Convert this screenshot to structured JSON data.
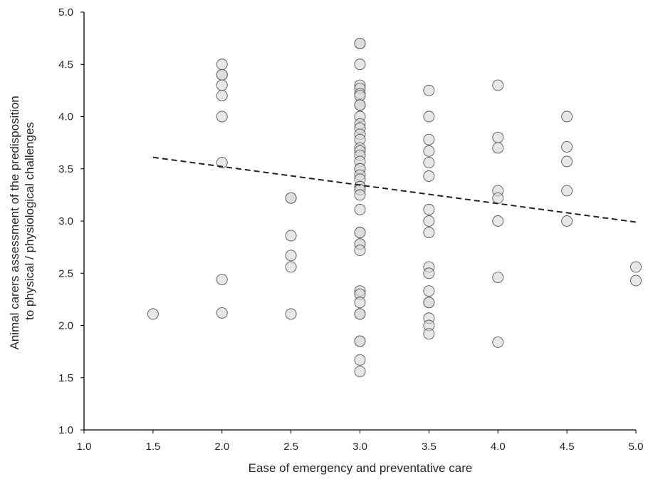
{
  "chart_data": {
    "type": "scatter",
    "title": "",
    "xlabel": "Ease of emergency and preventative care",
    "ylabel_lines": [
      "Animal carers assessment of the predisposition",
      "to physical / physiological challenges"
    ],
    "xlim": [
      1.0,
      5.0
    ],
    "ylim": [
      1.0,
      5.0
    ],
    "xticks": [
      "1.0",
      "1.5",
      "2.0",
      "2.5",
      "3.0",
      "3.5",
      "4.0",
      "4.5",
      "5.0"
    ],
    "yticks": [
      "1.0",
      "1.5",
      "2.0",
      "2.5",
      "3.0",
      "3.5",
      "4.0",
      "4.5",
      "5.0"
    ],
    "grid": false,
    "legend": "none",
    "marker_color": "#d9d9d9",
    "marker_edge": "#555555",
    "trendline": {
      "style": "dashed",
      "color": "#222222",
      "x": [
        1.5,
        5.0
      ],
      "y": [
        3.61,
        2.99
      ]
    },
    "points": [
      {
        "x": 1.5,
        "y": 2.11
      },
      {
        "x": 2.0,
        "y": 4.5
      },
      {
        "x": 2.0,
        "y": 4.4
      },
      {
        "x": 2.0,
        "y": 4.4
      },
      {
        "x": 2.0,
        "y": 4.3
      },
      {
        "x": 2.0,
        "y": 4.2
      },
      {
        "x": 2.0,
        "y": 4.0
      },
      {
        "x": 2.0,
        "y": 3.56
      },
      {
        "x": 2.0,
        "y": 2.44
      },
      {
        "x": 2.0,
        "y": 2.12
      },
      {
        "x": 2.5,
        "y": 3.22
      },
      {
        "x": 2.5,
        "y": 3.22
      },
      {
        "x": 2.5,
        "y": 2.86
      },
      {
        "x": 2.5,
        "y": 2.67
      },
      {
        "x": 2.5,
        "y": 2.56
      },
      {
        "x": 2.5,
        "y": 2.11
      },
      {
        "x": 3.0,
        "y": 4.7
      },
      {
        "x": 3.0,
        "y": 4.7
      },
      {
        "x": 3.0,
        "y": 4.5
      },
      {
        "x": 3.0,
        "y": 4.3
      },
      {
        "x": 3.0,
        "y": 4.27
      },
      {
        "x": 3.0,
        "y": 4.22
      },
      {
        "x": 3.0,
        "y": 4.2
      },
      {
        "x": 3.0,
        "y": 4.11
      },
      {
        "x": 3.0,
        "y": 4.11
      },
      {
        "x": 3.0,
        "y": 4.11
      },
      {
        "x": 3.0,
        "y": 4.0
      },
      {
        "x": 3.0,
        "y": 3.93
      },
      {
        "x": 3.0,
        "y": 3.89
      },
      {
        "x": 3.0,
        "y": 3.83
      },
      {
        "x": 3.0,
        "y": 3.78
      },
      {
        "x": 3.0,
        "y": 3.7
      },
      {
        "x": 3.0,
        "y": 3.67
      },
      {
        "x": 3.0,
        "y": 3.63
      },
      {
        "x": 3.0,
        "y": 3.57
      },
      {
        "x": 3.0,
        "y": 3.5
      },
      {
        "x": 3.0,
        "y": 3.5
      },
      {
        "x": 3.0,
        "y": 3.44
      },
      {
        "x": 3.0,
        "y": 3.4
      },
      {
        "x": 3.0,
        "y": 3.33
      },
      {
        "x": 3.0,
        "y": 3.33
      },
      {
        "x": 3.0,
        "y": 3.3
      },
      {
        "x": 3.0,
        "y": 3.25
      },
      {
        "x": 3.0,
        "y": 3.11
      },
      {
        "x": 3.0,
        "y": 2.89
      },
      {
        "x": 3.0,
        "y": 2.89
      },
      {
        "x": 3.0,
        "y": 2.78
      },
      {
        "x": 3.0,
        "y": 2.78
      },
      {
        "x": 3.0,
        "y": 2.72
      },
      {
        "x": 3.0,
        "y": 2.33
      },
      {
        "x": 3.0,
        "y": 2.3
      },
      {
        "x": 3.0,
        "y": 2.22
      },
      {
        "x": 3.0,
        "y": 2.11
      },
      {
        "x": 3.0,
        "y": 2.11
      },
      {
        "x": 3.0,
        "y": 1.85
      },
      {
        "x": 3.0,
        "y": 1.85
      },
      {
        "x": 3.0,
        "y": 1.67
      },
      {
        "x": 3.0,
        "y": 1.56
      },
      {
        "x": 3.5,
        "y": 4.25
      },
      {
        "x": 3.5,
        "y": 4.0
      },
      {
        "x": 3.5,
        "y": 3.78
      },
      {
        "x": 3.5,
        "y": 3.67
      },
      {
        "x": 3.5,
        "y": 3.56
      },
      {
        "x": 3.5,
        "y": 3.43
      },
      {
        "x": 3.5,
        "y": 3.11
      },
      {
        "x": 3.5,
        "y": 3.0
      },
      {
        "x": 3.5,
        "y": 2.89
      },
      {
        "x": 3.5,
        "y": 2.56
      },
      {
        "x": 3.5,
        "y": 2.5
      },
      {
        "x": 3.5,
        "y": 2.33
      },
      {
        "x": 3.5,
        "y": 2.22
      },
      {
        "x": 3.5,
        "y": 2.22
      },
      {
        "x": 3.5,
        "y": 2.07
      },
      {
        "x": 3.5,
        "y": 2.0
      },
      {
        "x": 3.5,
        "y": 1.92
      },
      {
        "x": 4.0,
        "y": 4.3
      },
      {
        "x": 4.0,
        "y": 3.8
      },
      {
        "x": 4.0,
        "y": 3.7
      },
      {
        "x": 4.0,
        "y": 3.29
      },
      {
        "x": 4.0,
        "y": 3.22
      },
      {
        "x": 4.0,
        "y": 3.0
      },
      {
        "x": 4.0,
        "y": 2.46
      },
      {
        "x": 4.0,
        "y": 1.84
      },
      {
        "x": 4.5,
        "y": 4.0
      },
      {
        "x": 4.5,
        "y": 3.71
      },
      {
        "x": 4.5,
        "y": 3.57
      },
      {
        "x": 4.5,
        "y": 3.29
      },
      {
        "x": 4.5,
        "y": 3.0
      },
      {
        "x": 5.0,
        "y": 2.56
      },
      {
        "x": 5.0,
        "y": 2.43
      }
    ]
  }
}
